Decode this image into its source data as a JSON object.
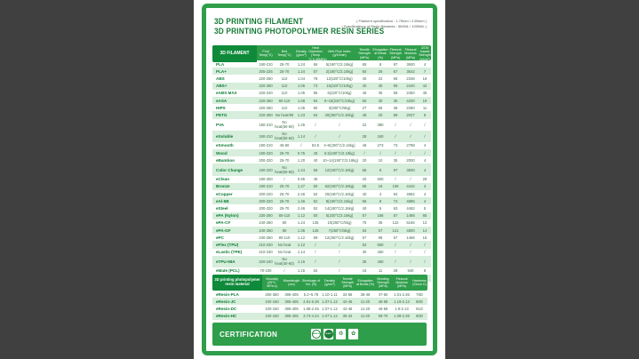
{
  "page": {
    "title_line1": "3D PRINTING FILAMENT",
    "title_line2": "3D PRINTING PHOTOPOLYMER RESIN SERIES",
    "spec_note_line1": "( Filament specification : 1.75mm / 2.85mm )",
    "spec_note_line2": "( Specifications of Resin filaments : 500ML / 1000ML )",
    "certification_label": "CERTIFICATION",
    "cert_badges": [
      {
        "name": "reach-badge",
        "label": "REACH",
        "style": "ring"
      },
      {
        "name": "rohs-badge",
        "label": "RoHS",
        "style": "ring-filled"
      },
      {
        "name": "eco-badge",
        "label": "♻",
        "style": "mark"
      },
      {
        "name": "quality-badge",
        "label": "✿",
        "style": "mark"
      }
    ]
  },
  "colors": {
    "frame_green": "#2f9e4b",
    "dark_green": "#0e8a3a",
    "title_green": "#157a36",
    "row_alt_green": "#d6eedb",
    "page_bg": "#ffffff",
    "letterbox_grey": "#404040"
  },
  "filament_table": {
    "corner_header": "3D FILAMENT",
    "headers": [
      "Print Temp(°C)",
      "Bed Temp(°C)",
      "Density (g/cm³)",
      "Heat Distortion (Temp °C,0.45MPa)",
      "Melt Flow Index (g/10min)",
      "Tensile Strength (MPa)",
      "Elongation at Break (%)",
      "Flexural Strength (MPa)",
      "Flexural Modulus (MPa)",
      "IZOD Impact Strength (kJ/m²)"
    ],
    "rows": [
      {
        "name": "PLA",
        "values": [
          "190-210",
          "25-70",
          "1.24",
          "56",
          "5(190°C/2.16kg)",
          "65",
          "8",
          "97",
          "3600",
          "4"
        ]
      },
      {
        "name": "PLA+",
        "values": [
          "205-225",
          "25-70",
          "1.24",
          "57",
          "2(190°C/2.16kg)",
          "60",
          "26",
          "67",
          "3642",
          "7"
        ]
      },
      {
        "name": "ABS",
        "values": [
          "220-260",
          "110",
          "1.04",
          "78",
          "12(220°C/10kg)",
          "40",
          "22",
          "66",
          "2348",
          "16"
        ]
      },
      {
        "name": "ABS+",
        "values": [
          "220-260",
          "110",
          "1.06",
          "73",
          "15(220°C/10kg)",
          "40",
          "30",
          "66",
          "2440",
          "42"
        ]
      },
      {
        "name": "eABS MAX",
        "values": [
          "220-240",
          "110",
          "1.05",
          "85",
          "6(220°C/10kg)",
          "45",
          "35",
          "58",
          "2450",
          "45"
        ]
      },
      {
        "name": "eASA",
        "values": [
          "220-260",
          "80-110",
          "1.08",
          "94",
          "9~15(220°C/10kg)",
          "50",
          "30",
          "35",
          "4200",
          "19"
        ]
      },
      {
        "name": "HIPS",
        "values": [
          "220-260",
          "110",
          "1.05",
          "80",
          "3(200°C/5kg)",
          "27",
          "55",
          "38",
          "2280",
          "11"
        ]
      },
      {
        "name": "PETG",
        "values": [
          "220-260",
          "No heat/80",
          "1.23",
          "64",
          "20(250°C/2.16kg)",
          "46",
          "20",
          "68",
          "2027",
          "8"
        ]
      },
      {
        "name": "PVA",
        "values": [
          "190-210",
          "No heat(50-60)",
          "1.25",
          "/",
          "/",
          "22",
          "380",
          "/",
          "/",
          "/"
        ]
      },
      {
        "name": "eSoluble",
        "values": [
          "190-210",
          "No heat(50-60)",
          "1.14",
          "/",
          "/",
          "28",
          "160",
          "/",
          "/",
          "/"
        ]
      },
      {
        "name": "eSmooth",
        "values": [
          "190-210",
          "45-60",
          "/",
          "63.5",
          "4~8(190°C/2.16kg)",
          "46",
          "273",
          "73",
          "2798",
          "4"
        ]
      },
      {
        "name": "Wood",
        "values": [
          "190-220",
          "25-70",
          "0.75",
          "45",
          "5.5(190°C/2.16kg)",
          "/",
          "/",
          "/",
          "/",
          "/"
        ]
      },
      {
        "name": "eBamboo",
        "values": [
          "200-220",
          "25-70",
          "1.20",
          "40",
          "10~14(190°C/2.16kg)",
          "20",
          "10",
          "35",
          "2000",
          "4"
        ]
      },
      {
        "name": "Color Change",
        "values": [
          "190-220",
          "No heat(50-60)",
          "1.24",
          "58",
          "12(190°C/2.16kg)",
          "65",
          "8",
          "97",
          "3600",
          "4"
        ]
      },
      {
        "name": "eClean",
        "values": [
          "190-300",
          "/",
          "0.95",
          "45",
          "/",
          "20",
          "500",
          "/",
          "/",
          "29"
        ]
      },
      {
        "name": "Bronze",
        "values": [
          "190-210",
          "25-70",
          "1.27",
          "50",
          "62(190°C/2.16kg)",
          "65",
          "16",
          "106",
          "4442",
          "4"
        ]
      },
      {
        "name": "eCopper",
        "values": [
          "200-220",
          "25-70",
          "2.46",
          "52",
          "20(190°C/2.16kg)",
          "40",
          "4",
          "94",
          "4864",
          "4"
        ]
      },
      {
        "name": "eAl-5B",
        "values": [
          "200-220",
          "25-70",
          "1.46",
          "52",
          "8(190°C/2.16kg)",
          "65",
          "8",
          "74",
          "4885",
          "4"
        ]
      },
      {
        "name": "eSteel",
        "values": [
          "200-220",
          "25-70",
          "2.46",
          "52",
          "14(190°C/2.16kg)",
          "40",
          "5",
          "63",
          "4462",
          "5"
        ]
      },
      {
        "name": "ePA (Nylon)",
        "values": [
          "230-260",
          "80-110",
          "1.12",
          "50",
          "5(230°C/2.16kg)",
          "57",
          "166",
          "57",
          "1466",
          "85"
        ]
      },
      {
        "name": "ePA-CF",
        "values": [
          "240-260",
          "80",
          "1.24",
          "135",
          "10(250°C/5kg)",
          "75",
          "36",
          "122",
          "5166",
          "12"
        ]
      },
      {
        "name": "ePA-GF",
        "values": [
          "240-260",
          "80",
          "1.35",
          "125",
          "7(250°C/5kg)",
          "63",
          "57",
          "121",
          "4800",
          "14"
        ]
      },
      {
        "name": "ePC",
        "values": [
          "230-260",
          "80-110",
          "1.12",
          "59",
          "12(250°C/2.16kg)",
          "57",
          "98",
          "57",
          "1466",
          "15"
        ]
      },
      {
        "name": "eFlex (TPU)",
        "values": [
          "210-230",
          "No heat",
          "1.12",
          "/",
          "/",
          "52",
          "550",
          "/",
          "/",
          "/"
        ]
      },
      {
        "name": "eLastic (TPE)",
        "values": [
          "210-230",
          "No heat",
          "1.14",
          "/",
          "/",
          "30",
          "450",
          "/",
          "/",
          "/"
        ]
      },
      {
        "name": "eTPU-98A",
        "values": [
          "220-240",
          "No heat(40-60)",
          "1.15",
          "/",
          "/",
          "35",
          "450",
          "/",
          "/",
          "/"
        ]
      },
      {
        "name": "eMate (PCL)",
        "values": [
          "70-100",
          "/",
          "1.15",
          "52",
          "/",
          "16",
          "11",
          "28",
          "940",
          "8"
        ]
      },
      {
        "name": "ePeek",
        "values": [
          "360-410",
          "120-140",
          "1.30",
          "152",
          "10(380°C/5kg)",
          "100",
          "40",
          "170",
          "3500",
          "7"
        ]
      }
    ]
  },
  "resin_table": {
    "corner_header": "3D printing photopolymer resin material",
    "headers": [
      "Viscosity (25°C, MPa·s)",
      "Wavelength (nm)",
      "Shrinkage of Vol. (%)",
      "Density (g/cm³)",
      "Tensile Strength (MPa)",
      "Elongation at Break (%)",
      "Bending Strength (MPa)",
      "Flexural Modulus (MPa)",
      "Hardness (Shore D)"
    ],
    "rows": [
      {
        "name": "eResin-PLA",
        "values": [
          "250-350",
          "395-405",
          "5.2~5.78",
          "1.10-1.11",
          "32-56",
          "36-46",
          "47-60",
          "1.01-2.36",
          "78D"
        ]
      },
      {
        "name": "eResin-JC",
        "values": [
          "100-150",
          "395-405",
          "4.91-5.38",
          "1.07-1.12",
          "42-46",
          "11-20",
          "46-58",
          "1.19-2.13",
          "80D"
        ]
      },
      {
        "name": "eResin-DC",
        "values": [
          "100-150",
          "395-405",
          "1.88-2.45",
          "1.07-1.12",
          "42-46",
          "11-20",
          "46-58",
          "1.9-2.13",
          "81D"
        ]
      },
      {
        "name": "eResin-HC",
        "values": [
          "100-150",
          "395-405",
          "3.73-4.24",
          "1.07-1.12",
          "35-42",
          "11-20",
          "59-70",
          "1.08-2.38",
          "80D"
        ]
      }
    ]
  }
}
